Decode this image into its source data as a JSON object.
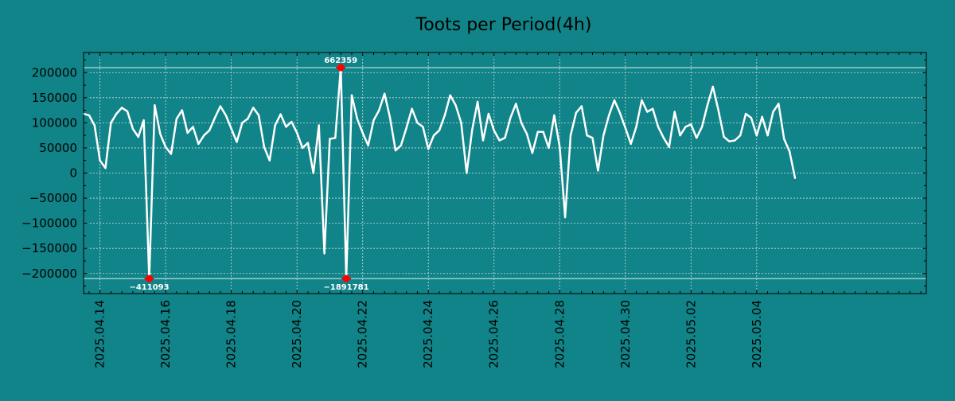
{
  "chart_data": {
    "type": "line",
    "title": "Toots per Period(4h)",
    "xlabel": "",
    "ylabel": "",
    "ylim": [
      -240000,
      240000
    ],
    "xlim": [
      0,
      154
    ],
    "clip_band": [
      -210000,
      210000
    ],
    "grid": true,
    "colors": {
      "background": "#108488",
      "line": "#ffffff",
      "marker": "#ff0000",
      "grid": "#c8dede",
      "axis": "#000000"
    },
    "yticks": [
      {
        "value": 200000,
        "label": "200000"
      },
      {
        "value": 150000,
        "label": "150000"
      },
      {
        "value": 100000,
        "label": "100000"
      },
      {
        "value": 50000,
        "label": "50000"
      },
      {
        "value": 0,
        "label": "0"
      },
      {
        "value": -50000,
        "label": "−50000"
      },
      {
        "value": -100000,
        "label": "−100000"
      },
      {
        "value": -150000,
        "label": "−150000"
      },
      {
        "value": -200000,
        "label": "−200000"
      }
    ],
    "xticks": [
      {
        "index": 3,
        "label": "2025.04.14"
      },
      {
        "index": 15,
        "label": "2025.04.16"
      },
      {
        "index": 27,
        "label": "2025.04.18"
      },
      {
        "index": 39,
        "label": "2025.04.20"
      },
      {
        "index": 51,
        "label": "2025.04.22"
      },
      {
        "index": 63,
        "label": "2025.04.24"
      },
      {
        "index": 75,
        "label": "2025.04.26"
      },
      {
        "index": 87,
        "label": "2025.04.28"
      },
      {
        "index": 99,
        "label": "2025.04.30"
      },
      {
        "index": 111,
        "label": "2025.05.02"
      },
      {
        "index": 123,
        "label": "2025.05.04"
      }
    ],
    "values": [
      118000,
      115000,
      95000,
      25000,
      10000,
      100000,
      118000,
      130000,
      123000,
      88000,
      72000,
      105000,
      -210000,
      135000,
      78000,
      52000,
      38000,
      108000,
      125000,
      80000,
      92000,
      58000,
      75000,
      85000,
      110000,
      133000,
      115000,
      88000,
      62000,
      100000,
      108000,
      130000,
      115000,
      52000,
      25000,
      95000,
      117000,
      92000,
      102000,
      80000,
      50000,
      60000,
      0,
      95000,
      -160000,
      68000,
      70000,
      210000,
      -210000,
      155000,
      108000,
      80000,
      55000,
      105000,
      125000,
      158000,
      110000,
      45000,
      55000,
      90000,
      128000,
      100000,
      92000,
      48000,
      75000,
      85000,
      115000,
      155000,
      135000,
      100000,
      0,
      85000,
      142000,
      65000,
      118000,
      85000,
      65000,
      70000,
      110000,
      138000,
      100000,
      78000,
      40000,
      82000,
      82000,
      50000,
      115000,
      52000,
      -88000,
      75000,
      120000,
      133000,
      75000,
      70000,
      5000,
      75000,
      115000,
      145000,
      120000,
      90000,
      58000,
      92000,
      145000,
      122000,
      128000,
      92000,
      70000,
      52000,
      122000,
      75000,
      92000,
      97000,
      70000,
      92000,
      135000,
      172000,
      125000,
      72000,
      63000,
      65000,
      75000,
      118000,
      110000,
      75000,
      112000,
      75000,
      122000,
      138000,
      68000,
      43000,
      -10000
    ],
    "annotations": [
      {
        "index": 12,
        "value": -210000,
        "label": "−411093",
        "position": "below"
      },
      {
        "index": 47,
        "value": 210000,
        "label": "662359",
        "position": "above"
      },
      {
        "index": 48,
        "value": -210000,
        "label": "−1891781",
        "position": "below"
      }
    ]
  }
}
